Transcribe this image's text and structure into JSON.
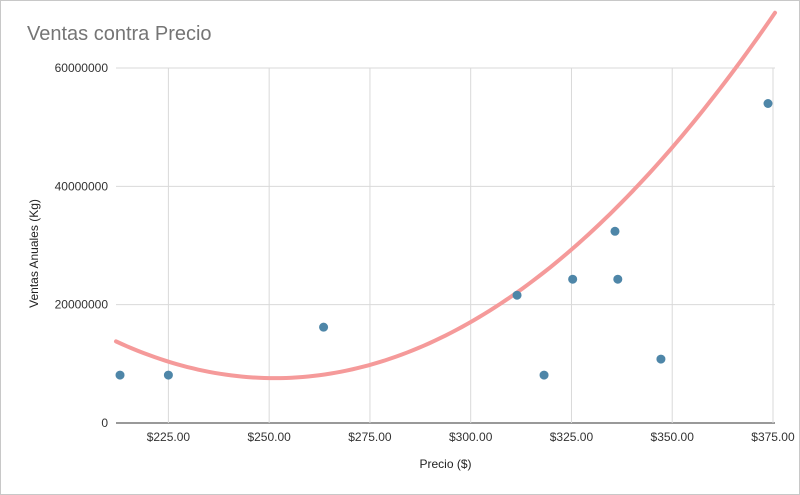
{
  "chart_data": {
    "type": "scatter",
    "title": "Ventas contra Precio",
    "xlabel": "Precio ($)",
    "ylabel": "Ventas Anuales (Kg)",
    "xlim": [
      212,
      375.5
    ],
    "ylim": [
      0,
      60000000
    ],
    "x_ticks": [
      225,
      250,
      275,
      300,
      325,
      350,
      375
    ],
    "x_tick_labels": [
      "$225.00",
      "$250.00",
      "$275.00",
      "$300.00",
      "$325.00",
      "$350.00",
      "$375.00"
    ],
    "y_ticks": [
      0,
      20000000,
      40000000,
      60000000
    ],
    "y_tick_labels": [
      "0",
      "20000000",
      "40000000",
      "60000000"
    ],
    "grid": true,
    "legend": "none",
    "series": [
      {
        "points": [
          {
            "x": 213,
            "y": 8100000
          },
          {
            "x": 225,
            "y": 8100000
          },
          {
            "x": 263.5,
            "y": 16200000
          },
          {
            "x": 311.5,
            "y": 21600000
          },
          {
            "x": 318.2,
            "y": 8100000
          },
          {
            "x": 325.3,
            "y": 24300000
          },
          {
            "x": 335.8,
            "y": 32400000
          },
          {
            "x": 336.5,
            "y": 24300000
          },
          {
            "x": 347.2,
            "y": 10800000
          },
          {
            "x": 379,
            "y": 54000000
          }
        ]
      }
    ],
    "trendline": {
      "type": "polynomial",
      "degree": 2,
      "coefficients": [
        4008,
        -2015000,
        260840000
      ]
    },
    "colors": {
      "points": "#4e86a8",
      "trendline": "#f59a9a",
      "grid": "#d9d9d9",
      "title": "#757575"
    }
  }
}
